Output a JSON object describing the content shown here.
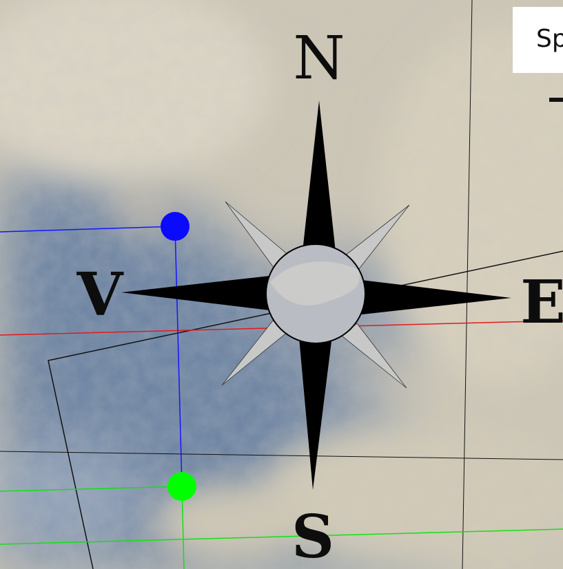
{
  "map_title_fragment": "Sp",
  "compass": {
    "north": "N",
    "south": "S",
    "east": "E",
    "west": "V"
  },
  "colors": {
    "blue_line": "#1414ff",
    "blue_marker": "#0a0aff",
    "green_line": "#12e012",
    "green_marker": "#00ff00",
    "red_line": "#e21a1a",
    "black_line": "#111111",
    "compass_point": "#000000",
    "compass_minor_point": "#c8c8c8"
  }
}
